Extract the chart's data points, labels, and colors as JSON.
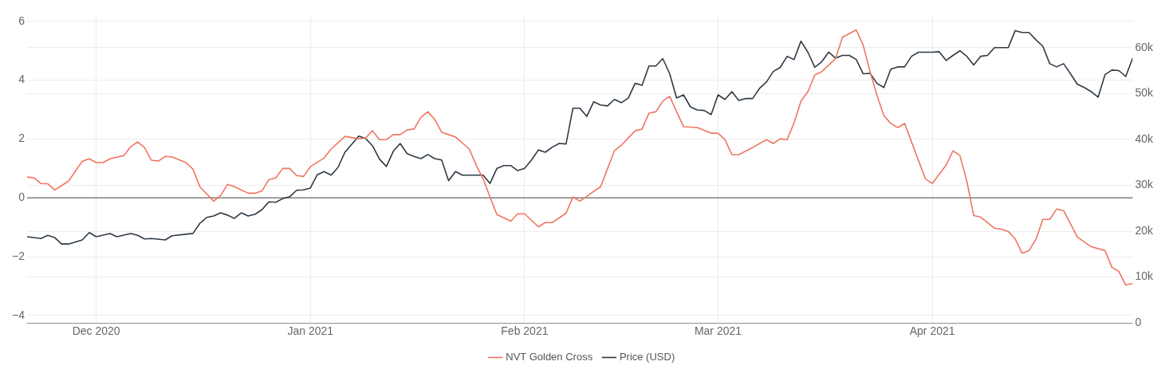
{
  "chart_data": {
    "type": "line",
    "legend": "bottom",
    "grid": true,
    "marker": "none",
    "line_style": "solid",
    "xlim": [
      "2020-11-21",
      "2021-04-30"
    ],
    "xticks": [
      {
        "value": "2020-12-01",
        "label": "Dec 2020"
      },
      {
        "value": "2021-01-01",
        "label": "Jan 2021"
      },
      {
        "value": "2021-02-01",
        "label": "Feb 2021"
      },
      {
        "value": "2021-03-01",
        "label": "Mar 2021"
      },
      {
        "value": "2021-04-01",
        "label": "Apr 2021"
      }
    ],
    "ylim": [
      -4.25,
      6.2
    ],
    "yticks": [
      {
        "value": -4,
        "label": "−4"
      },
      {
        "value": -2,
        "label": "−2"
      },
      0,
      2,
      4,
      6
    ],
    "y2lim": [
      0,
      67000
    ],
    "y2ticks": [
      0,
      {
        "value": 10000,
        "label": "10k"
      },
      {
        "value": 20000,
        "label": "20k"
      },
      {
        "value": 30000,
        "label": "30k"
      },
      {
        "value": 40000,
        "label": "40k"
      },
      {
        "value": 50000,
        "label": "50k"
      },
      {
        "value": 60000,
        "label": "60k"
      }
    ],
    "ref_lines": [
      {
        "axis": "y",
        "value": 0,
        "color": "#7f7f7f"
      }
    ],
    "series": [
      {
        "name": "NVT Golden Cross",
        "color": "#f07560",
        "x": [
          "2020-11-21",
          "2020-11-22",
          "2020-11-23",
          "2020-11-24",
          "2020-11-25",
          "2020-11-27",
          "2020-11-29",
          "2020-11-30",
          "2020-12-01",
          "2020-12-02",
          "2020-12-03",
          "2020-12-05",
          "2020-12-06",
          "2020-12-07",
          "2020-12-08",
          "2020-12-09",
          "2020-12-10",
          "2020-12-11",
          "2020-12-12",
          "2020-12-14",
          "2020-12-15",
          "2020-12-16",
          "2020-12-18",
          "2020-12-19",
          "2020-12-20",
          "2020-12-21",
          "2020-12-23",
          "2020-12-24",
          "2020-12-25",
          "2020-12-26",
          "2020-12-27",
          "2020-12-28",
          "2020-12-29",
          "2020-12-30",
          "2020-12-31",
          "2021-01-01",
          "2021-01-03",
          "2021-01-04",
          "2021-01-06",
          "2021-01-08",
          "2021-01-09",
          "2021-01-10",
          "2021-01-11",
          "2021-01-12",
          "2021-01-13",
          "2021-01-14",
          "2021-01-15",
          "2021-01-16",
          "2021-01-17",
          "2021-01-18",
          "2021-01-19",
          "2021-01-20",
          "2021-01-22",
          "2021-01-24",
          "2021-01-25",
          "2021-01-26",
          "2021-01-27",
          "2021-01-28",
          "2021-01-30",
          "2021-01-31",
          "2021-02-01",
          "2021-02-03",
          "2021-02-04",
          "2021-02-05",
          "2021-02-07",
          "2021-02-08",
          "2021-02-09",
          "2021-02-10",
          "2021-02-11",
          "2021-02-12",
          "2021-02-14",
          "2021-02-15",
          "2021-02-17",
          "2021-02-18",
          "2021-02-19",
          "2021-02-20",
          "2021-02-21",
          "2021-02-22",
          "2021-02-23",
          "2021-02-24",
          "2021-02-26",
          "2021-02-28",
          "2021-03-01",
          "2021-03-02",
          "2021-03-03",
          "2021-03-04",
          "2021-03-06",
          "2021-03-08",
          "2021-03-09",
          "2021-03-10",
          "2021-03-11",
          "2021-03-12",
          "2021-03-13",
          "2021-03-14",
          "2021-03-15",
          "2021-03-16",
          "2021-03-18",
          "2021-03-19",
          "2021-03-21",
          "2021-03-22",
          "2021-03-23",
          "2021-03-24",
          "2021-03-25",
          "2021-03-26",
          "2021-03-27",
          "2021-03-28",
          "2021-03-31",
          "2021-04-01",
          "2021-04-03",
          "2021-04-04",
          "2021-04-05",
          "2021-04-06",
          "2021-04-07",
          "2021-04-08",
          "2021-04-10",
          "2021-04-11",
          "2021-04-12",
          "2021-04-13",
          "2021-04-14",
          "2021-04-15",
          "2021-04-16",
          "2021-04-17",
          "2021-04-18",
          "2021-04-19",
          "2021-04-20",
          "2021-04-22",
          "2021-04-24",
          "2021-04-26",
          "2021-04-27",
          "2021-04-28",
          "2021-04-29",
          "2021-04-30"
        ],
        "values": [
          0.71,
          0.68,
          0.49,
          0.48,
          0.27,
          0.57,
          1.25,
          1.33,
          1.2,
          1.2,
          1.33,
          1.44,
          1.74,
          1.9,
          1.71,
          1.28,
          1.25,
          1.41,
          1.39,
          1.2,
          0.98,
          0.38,
          -0.11,
          0.08,
          0.46,
          0.38,
          0.16,
          0.16,
          0.24,
          0.62,
          0.68,
          1.0,
          1.0,
          0.76,
          0.73,
          1.06,
          1.36,
          1.66,
          2.09,
          2.01,
          2.04,
          2.28,
          1.98,
          1.98,
          2.15,
          2.15,
          2.31,
          2.34,
          2.74,
          2.93,
          2.66,
          2.23,
          2.07,
          1.66,
          1.11,
          0.65,
          0.03,
          -0.57,
          -0.79,
          -0.54,
          -0.54,
          -0.98,
          -0.84,
          -0.84,
          -0.52,
          0.03,
          -0.11,
          0.05,
          0.22,
          0.38,
          1.6,
          1.79,
          2.28,
          2.34,
          2.88,
          2.93,
          3.29,
          3.45,
          2.93,
          2.42,
          2.39,
          2.2,
          2.2,
          1.98,
          1.47,
          1.47,
          1.71,
          1.98,
          1.85,
          2.01,
          1.98,
          2.55,
          3.29,
          3.61,
          4.18,
          4.29,
          4.73,
          5.46,
          5.71,
          5.19,
          4.29,
          3.48,
          2.8,
          2.53,
          2.39,
          2.53,
          0.65,
          0.49,
          1.11,
          1.6,
          1.44,
          0.57,
          -0.6,
          -0.65,
          -1.03,
          -1.06,
          -1.14,
          -1.39,
          -1.88,
          -1.79,
          -1.41,
          -0.73,
          -0.73,
          -0.38,
          -0.43,
          -1.33,
          -1.66,
          -1.79,
          -2.36,
          -2.5,
          -2.96,
          -2.91
        ]
      },
      {
        "name": "Price (USD)",
        "color": "#2f3a45",
        "axis": "y2",
        "x": [
          "2020-11-21",
          "2020-11-23",
          "2020-11-24",
          "2020-11-25",
          "2020-11-26",
          "2020-11-27",
          "2020-11-29",
          "2020-11-30",
          "2020-12-01",
          "2020-12-03",
          "2020-12-04",
          "2020-12-06",
          "2020-12-07",
          "2020-12-08",
          "2020-12-09",
          "2020-12-11",
          "2020-12-12",
          "2020-12-15",
          "2020-12-16",
          "2020-12-17",
          "2020-12-18",
          "2020-12-19",
          "2020-12-20",
          "2020-12-21",
          "2020-12-22",
          "2020-12-23",
          "2020-12-24",
          "2020-12-25",
          "2020-12-26",
          "2020-12-27",
          "2020-12-28",
          "2020-12-29",
          "2020-12-30",
          "2020-12-31",
          "2021-01-01",
          "2021-01-02",
          "2021-01-03",
          "2021-01-04",
          "2021-01-05",
          "2021-01-06",
          "2021-01-08",
          "2021-01-09",
          "2021-01-10",
          "2021-01-11",
          "2021-01-12",
          "2021-01-13",
          "2021-01-14",
          "2021-01-15",
          "2021-01-16",
          "2021-01-17",
          "2021-01-18",
          "2021-01-19",
          "2021-01-20",
          "2021-01-21",
          "2021-01-22",
          "2021-01-23",
          "2021-01-24",
          "2021-01-26",
          "2021-01-27",
          "2021-01-28",
          "2021-01-29",
          "2021-01-30",
          "2021-01-31",
          "2021-02-01",
          "2021-02-02",
          "2021-02-03",
          "2021-02-04",
          "2021-02-05",
          "2021-02-06",
          "2021-02-07",
          "2021-02-08",
          "2021-02-09",
          "2021-02-10",
          "2021-02-11",
          "2021-02-12",
          "2021-02-13",
          "2021-02-14",
          "2021-02-15",
          "2021-02-16",
          "2021-02-17",
          "2021-02-18",
          "2021-02-19",
          "2021-02-20",
          "2021-02-21",
          "2021-02-22",
          "2021-02-23",
          "2021-02-24",
          "2021-02-25",
          "2021-02-26",
          "2021-02-27",
          "2021-02-28",
          "2021-03-01",
          "2021-03-02",
          "2021-03-03",
          "2021-03-04",
          "2021-03-05",
          "2021-03-06",
          "2021-03-07",
          "2021-03-08",
          "2021-03-09",
          "2021-03-10",
          "2021-03-11",
          "2021-03-12",
          "2021-03-13",
          "2021-03-14",
          "2021-03-15",
          "2021-03-16",
          "2021-03-17",
          "2021-03-18",
          "2021-03-19",
          "2021-03-20",
          "2021-03-21",
          "2021-03-22",
          "2021-03-23",
          "2021-03-24",
          "2021-03-25",
          "2021-03-26",
          "2021-03-27",
          "2021-03-28",
          "2021-03-29",
          "2021-03-30",
          "2021-03-31",
          "2021-04-01",
          "2021-04-02",
          "2021-04-03",
          "2021-04-04",
          "2021-04-05",
          "2021-04-06",
          "2021-04-07",
          "2021-04-08",
          "2021-04-09",
          "2021-04-10",
          "2021-04-11",
          "2021-04-12",
          "2021-04-13",
          "2021-04-14",
          "2021-04-15",
          "2021-04-16",
          "2021-04-17",
          "2021-04-18",
          "2021-04-19",
          "2021-04-20",
          "2021-04-21",
          "2021-04-22",
          "2021-04-23",
          "2021-04-24",
          "2021-04-25",
          "2021-04-26",
          "2021-04-27",
          "2021-04-28",
          "2021-04-29",
          "2021-04-30"
        ],
        "values": [
          18800,
          18400,
          19100,
          18600,
          17200,
          17200,
          18100,
          19700,
          18800,
          19500,
          18800,
          19500,
          19100,
          18300,
          18400,
          18100,
          19000,
          19500,
          21700,
          23000,
          23300,
          24000,
          23500,
          22800,
          24000,
          23300,
          23700,
          24700,
          26400,
          26300,
          27100,
          27500,
          28900,
          29000,
          29400,
          32300,
          33000,
          32200,
          33900,
          37200,
          40700,
          40200,
          38600,
          35700,
          34100,
          37400,
          39100,
          36900,
          36300,
          35800,
          36700,
          35800,
          35500,
          31000,
          33000,
          32200,
          32200,
          32200,
          30400,
          33700,
          34300,
          34300,
          33200,
          33700,
          35500,
          37700,
          37200,
          38300,
          39100,
          39000,
          46800,
          46800,
          45000,
          48200,
          47500,
          47300,
          48700,
          48000,
          49000,
          52200,
          51800,
          56000,
          56000,
          57600,
          54300,
          49000,
          49700,
          47100,
          46400,
          46300,
          45400,
          49700,
          48700,
          50400,
          48500,
          48900,
          48900,
          51100,
          52500,
          54800,
          55700,
          58100,
          57400,
          61400,
          59000,
          55700,
          56900,
          59000,
          57700,
          58300,
          58300,
          57400,
          54300,
          54400,
          52200,
          51300,
          55300,
          55800,
          55800,
          58100,
          59000,
          59000,
          59000,
          59100,
          57200,
          58300,
          59300,
          58100,
          56200,
          58100,
          58300,
          60000,
          60000,
          60000,
          63700,
          63300,
          63300,
          61700,
          60300,
          56500,
          55800,
          56500,
          54300,
          52000,
          51300,
          50400,
          49200,
          54100,
          55100,
          55000,
          53700,
          57700
        ]
      }
    ]
  }
}
